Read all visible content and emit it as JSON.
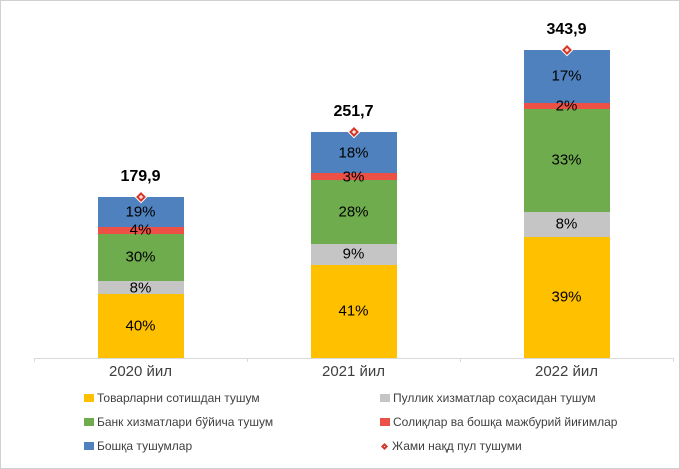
{
  "chart_data": {
    "type": "bar",
    "stacked": true,
    "categories": [
      "2020 йил",
      "2021 йил",
      "2022 йил"
    ],
    "totals": [
      179.9,
      251.7,
      343.9
    ],
    "totals_display": [
      "179,9",
      "251,7",
      "343,9"
    ],
    "series": [
      {
        "name": "Товарларни сотишдан тушум",
        "color": "#FFC000",
        "values_pct": [
          40,
          41,
          39
        ]
      },
      {
        "name": "Пуллик хизматлар соҳасидан тушум",
        "color": "#C5C5C5",
        "values_pct": [
          8,
          9,
          8
        ]
      },
      {
        "name": "Банк хизматлари бўйича тушум",
        "color": "#6FAC4D",
        "values_pct": [
          30,
          28,
          33
        ]
      },
      {
        "name": "Солиқлар ва бошқа мажбурий йиғимлар",
        "color": "#ED5145",
        "values_pct": [
          4,
          3,
          2
        ]
      },
      {
        "name": "Бошқа тушумлар",
        "color": "#4E81BD",
        "values_pct": [
          19,
          18,
          17
        ]
      }
    ],
    "marker_series": {
      "name": "Жами нақд пул тушуми",
      "symbol": "diamond",
      "color": "#D5382B",
      "values": [
        179.9,
        251.7,
        343.9
      ]
    },
    "label_format": "percent",
    "legend_position": "bottom",
    "legend_columns": [
      [
        0,
        2,
        4
      ],
      [
        1,
        3,
        "marker"
      ]
    ],
    "grid": false,
    "axis_color": "#D9D9D9",
    "background": "#FFFFFF"
  }
}
